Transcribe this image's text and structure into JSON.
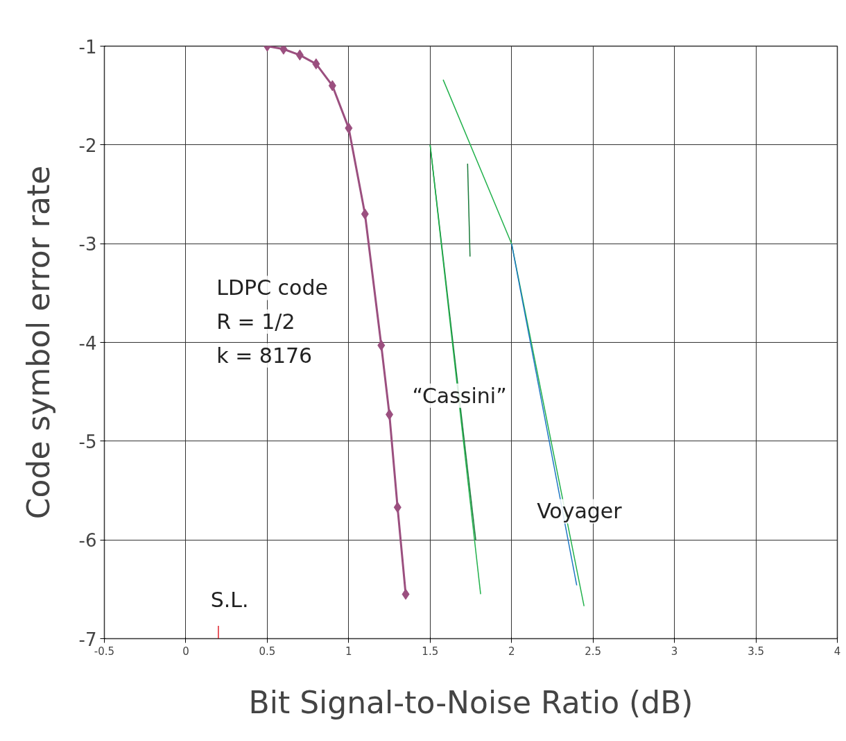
{
  "chart_data": {
    "type": "line",
    "xlabel": "Bit Signal-to-Noise Ratio (dB)",
    "ylabel": "Code symbol error rate",
    "xlim": [
      -0.5,
      4
    ],
    "ylim": [
      -7,
      -1
    ],
    "xticks": [
      -0.5,
      0,
      0.5,
      1,
      1.5,
      2,
      2.5,
      3,
      3.5,
      4
    ],
    "yticks": [
      -7,
      -6,
      -5,
      -4,
      -3,
      -2,
      -1
    ],
    "grid": true,
    "series": [
      {
        "color": "#9b4f7f",
        "marker": "diamond",
        "x": [
          0.5,
          0.6,
          0.7,
          0.8,
          0.9,
          1.0,
          1.1,
          1.2,
          1.25,
          1.3,
          1.35
        ],
        "values": [
          -1.0,
          -1.03,
          -1.09,
          -1.18,
          -1.4,
          -1.83,
          -2.7,
          -4.03,
          -4.73,
          -5.67,
          -6.55
        ]
      },
      {
        "color": "#1a7a3a",
        "marker": "none",
        "x": [
          1.5,
          1.78
        ],
        "values": [
          -2.0,
          -6.0
        ]
      },
      {
        "color": "#22b14c",
        "marker": "none",
        "x": [
          1.5,
          1.81
        ],
        "values": [
          -2.0,
          -6.55
        ]
      },
      {
        "color": "#1a7a3a",
        "marker": "none",
        "x": [
          1.73,
          1.745
        ],
        "values": [
          -2.19,
          -3.13
        ]
      },
      {
        "color": "#22b14c",
        "marker": "none",
        "x": [
          1.58,
          2.0,
          2.445
        ],
        "values": [
          -1.34,
          -3.0,
          -6.67
        ]
      },
      {
        "color": "#1f77c4",
        "marker": "none",
        "x": [
          2.0,
          2.4
        ],
        "values": [
          -3.0,
          -6.46
        ]
      },
      {
        "color": "#e0202a",
        "marker": "none",
        "x": [
          0.2,
          0.2
        ],
        "values": [
          -7.0,
          -6.87
        ]
      }
    ],
    "annotations": [
      "LDPC code",
      "R = 1/2",
      "k = 8176",
      "“Cassini”",
      "Voyager",
      "S.L."
    ]
  }
}
